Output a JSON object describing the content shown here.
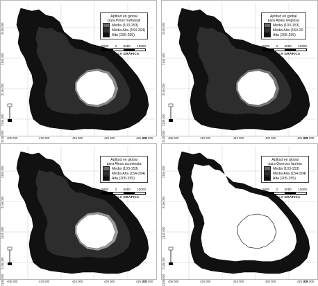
{
  "panels": [
    {
      "id": "pinus",
      "legend": {
        "title_line1": "Aptitud en global",
        "title_line2": "para Pinus hartwegii",
        "classes": [
          {
            "label": "Media (103-153)",
            "color": "#6a6a6a"
          },
          {
            "label": "Media Alta (154-204)",
            "color": "#333333"
          },
          {
            "label": "Alta (205-255)",
            "color": "#111111"
          }
        ]
      },
      "x_ticks": [
        "405 000",
        "410 000",
        "415 000",
        "420 000",
        "425 000",
        "430 000"
      ],
      "y_ticks": [
        "2150 000",
        "2145 000",
        "2140 000",
        "2135 000",
        "2130 000"
      ],
      "crater_fill": "#ffffff",
      "ring_color": "#8a8a8a"
    },
    {
      "id": "abies",
      "legend": {
        "title_line1": "Aptitud en global",
        "title_line2": "para Abies religiosa",
        "classes": [
          {
            "label": "Media (103-153)",
            "color": "#6a6a6a"
          },
          {
            "label": "Media Alta (154-20",
            "color": "#333333"
          },
          {
            "label": "Alta (205-255)",
            "color": "#111111"
          }
        ]
      },
      "x_ticks": [
        "405 000",
        "410 000",
        "415 000",
        "420 000",
        "425 000",
        "430 000"
      ],
      "y_ticks": [
        "2150 000",
        "2145 000",
        "2140 000",
        "2135 000",
        "2130 000"
      ],
      "crater_fill": "#ffffff",
      "ring_color": "#777777"
    },
    {
      "id": "alnus",
      "legend": {
        "title_line1": "Aptitud en global",
        "title_line2": "para Alnus acuminata",
        "classes": [
          {
            "label": "Media (103-153)",
            "color": "#6a6a6a"
          },
          {
            "label": "Media Alta (154-204)",
            "color": "#333333"
          },
          {
            "label": "Alta (205-255)",
            "color": "#111111"
          }
        ]
      },
      "x_ticks": [
        "405 000",
        "410 000",
        "415 000",
        "420 000",
        "425 000",
        "430 000"
      ],
      "y_ticks": [
        "2150 000",
        "2145 000",
        "2140 000",
        "2135 000",
        "2130 000"
      ],
      "crater_fill": "#ffffff",
      "ring_color": "#9a9a9a"
    },
    {
      "id": "quercus",
      "legend": {
        "title_line1": "Aptitud en global",
        "title_line2": "para Quercus laurina",
        "classes": [
          {
            "label": "Media (103-153)",
            "color": "#6a6a6a"
          },
          {
            "label": "Media Alta (154-204)",
            "color": "#333333"
          },
          {
            "label": "Alta (205-255)",
            "color": "#111111"
          }
        ]
      },
      "x_ticks": [
        "405 000",
        "410 000",
        "415 000",
        "420 000",
        "425 000",
        "430 000"
      ],
      "y_ticks": [
        "2150 000",
        "2145 000",
        "2140 000",
        "2135 000",
        "2130 000"
      ],
      "crater_fill": "#ffffff",
      "ring_color": "#555555"
    }
  ],
  "scale": {
    "ticks": [
      "5000",
      "0",
      "5000",
      "10000"
    ],
    "caption": "ESCALA GRÁFICA"
  }
}
